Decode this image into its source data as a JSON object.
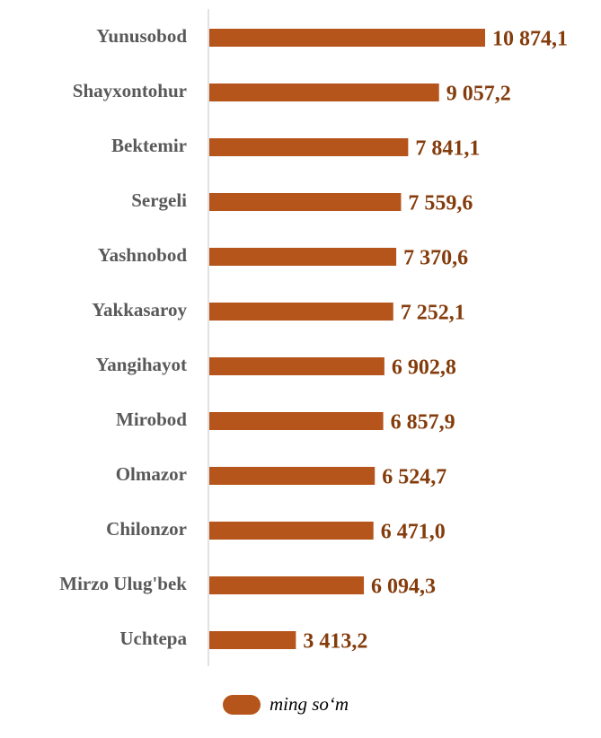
{
  "chart_data": {
    "type": "bar",
    "orientation": "horizontal",
    "categories": [
      "Yunusobod",
      "Shayxontohur",
      "Bektemir",
      "Sergeli",
      "Yashnobod",
      "Yakkasaroy",
      "Yangihayot",
      "Mirobod",
      "Olmazor",
      "Chilonzor",
      "Mirzo Ulug'bek",
      "Uchtepa"
    ],
    "series": [
      {
        "name": "ming so‘m",
        "color": "#b5541b",
        "values": [
          10874.1,
          9057.2,
          7841.1,
          7559.6,
          7370.6,
          7252.1,
          6902.8,
          6857.9,
          6524.7,
          6471.0,
          6094.3,
          3413.2
        ],
        "value_labels": [
          "10 874,1",
          "9 057,2",
          "7 841,1",
          "7 559,6",
          "7 370,6",
          "7 252,1",
          "6 902,8",
          "6 857,9",
          "6 524,7",
          "6 471,0",
          "6 094,3",
          "3 413,2"
        ]
      }
    ],
    "legend": "bottom"
  }
}
